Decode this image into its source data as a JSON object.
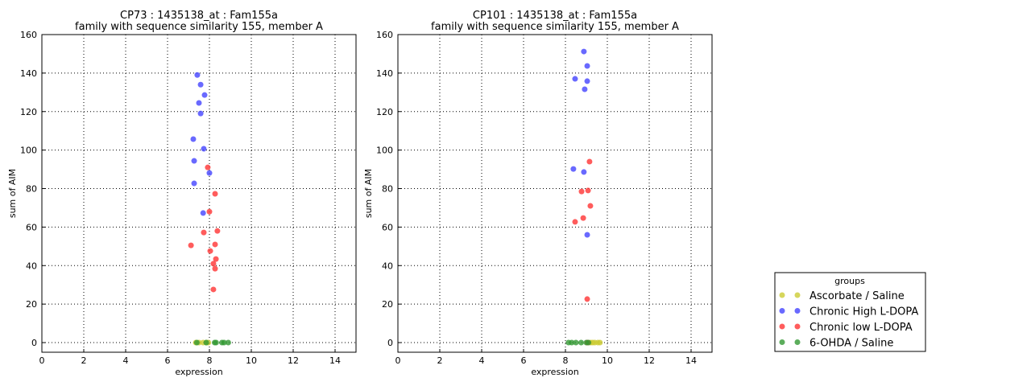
{
  "legend": {
    "title": "groups",
    "placement": "lower-right outside",
    "entries": [
      {
        "name": "Ascorbate / Saline",
        "color": "#cccc33"
      },
      {
        "name": "Chronic High L-DOPA",
        "color": "#4444ff"
      },
      {
        "name": "Chronic low L-DOPA",
        "color": "#ff3333"
      },
      {
        "name": "6-OHDA / Saline",
        "color": "#339933"
      }
    ]
  },
  "chart_data": [
    {
      "type": "scatter",
      "title": "CP73 : 1435138_at : Fam155a",
      "subtitle": "family with sequence similarity 155, member A",
      "xlabel": "expression",
      "ylabel": "sum of AIM",
      "xlim": [
        0,
        15
      ],
      "ylim": [
        -5,
        160
      ],
      "grid": true,
      "xticks": [
        "0",
        "2",
        "4",
        "6",
        "8",
        "10",
        "12",
        "14"
      ],
      "yticks": [
        "0",
        "20",
        "40",
        "60",
        "80",
        "100",
        "120",
        "140",
        "160"
      ],
      "series": [
        {
          "name": "Ascorbate / Saline",
          "points": [
            [
              7.35,
              0
            ],
            [
              7.5,
              0
            ],
            [
              7.7,
              0
            ],
            [
              7.85,
              0
            ],
            [
              7.95,
              0
            ]
          ]
        },
        {
          "name": "Chronic High L-DOPA",
          "points": [
            [
              7.42,
              139
            ],
            [
              7.58,
              134
            ],
            [
              7.77,
              128.6
            ],
            [
              7.5,
              124.5
            ],
            [
              7.58,
              119
            ],
            [
              7.23,
              105.7
            ],
            [
              7.73,
              100.7
            ],
            [
              7.27,
              94.4
            ],
            [
              8.0,
              88.1
            ],
            [
              7.27,
              82.7
            ],
            [
              7.7,
              67.3
            ]
          ]
        },
        {
          "name": "Chronic low L-DOPA",
          "points": [
            [
              7.92,
              91
            ],
            [
              8.27,
              77.3
            ],
            [
              8.0,
              68
            ],
            [
              7.73,
              57.2
            ],
            [
              8.38,
              58
            ],
            [
              8.27,
              51
            ],
            [
              7.12,
              50.5
            ],
            [
              8.04,
              47.6
            ],
            [
              8.31,
              43.4
            ],
            [
              8.19,
              41
            ],
            [
              8.27,
              38.4
            ],
            [
              8.19,
              27.6
            ]
          ]
        },
        {
          "name": "6-OHDA / Saline",
          "points": [
            [
              7.4,
              0
            ],
            [
              7.85,
              0
            ],
            [
              8.25,
              0
            ],
            [
              8.32,
              0
            ],
            [
              8.6,
              0
            ],
            [
              8.7,
              0
            ],
            [
              8.9,
              0
            ]
          ]
        }
      ]
    },
    {
      "type": "scatter",
      "title": "CP101 : 1435138_at : Fam155a",
      "subtitle": "family with sequence similarity 155, member A",
      "xlabel": "expression",
      "ylabel": "sum of AIM",
      "xlim": [
        0,
        15
      ],
      "ylim": [
        -5,
        160
      ],
      "grid": true,
      "xticks": [
        "0",
        "2",
        "4",
        "6",
        "8",
        "10",
        "12",
        "14"
      ],
      "yticks": [
        "0",
        "20",
        "40",
        "60",
        "80",
        "100",
        "120",
        "140",
        "160"
      ],
      "series": [
        {
          "name": "Ascorbate / Saline",
          "points": [
            [
              9.2,
              0
            ],
            [
              9.3,
              0
            ],
            [
              9.4,
              0
            ],
            [
              9.55,
              0
            ],
            [
              9.65,
              0
            ]
          ]
        },
        {
          "name": "Chronic High L-DOPA",
          "points": [
            [
              8.88,
              151.2
            ],
            [
              9.04,
              143.7
            ],
            [
              8.46,
              137
            ],
            [
              9.04,
              135.8
            ],
            [
              8.92,
              131.6
            ],
            [
              8.38,
              90.2
            ],
            [
              8.88,
              88.6
            ],
            [
              9.04,
              56
            ]
          ]
        },
        {
          "name": "Chronic low L-DOPA",
          "points": [
            [
              9.15,
              94
            ],
            [
              8.77,
              78.5
            ],
            [
              9.08,
              79
            ],
            [
              9.19,
              71
            ],
            [
              8.85,
              64.7
            ],
            [
              8.46,
              62.7
            ],
            [
              9.04,
              22.6
            ],
            [
              9.05,
              0
            ]
          ]
        },
        {
          "name": "6-OHDA / Saline",
          "points": [
            [
              8.15,
              0
            ],
            [
              8.3,
              0
            ],
            [
              8.5,
              0
            ],
            [
              8.75,
              0
            ],
            [
              9.0,
              0
            ],
            [
              9.1,
              0
            ]
          ]
        }
      ]
    }
  ]
}
